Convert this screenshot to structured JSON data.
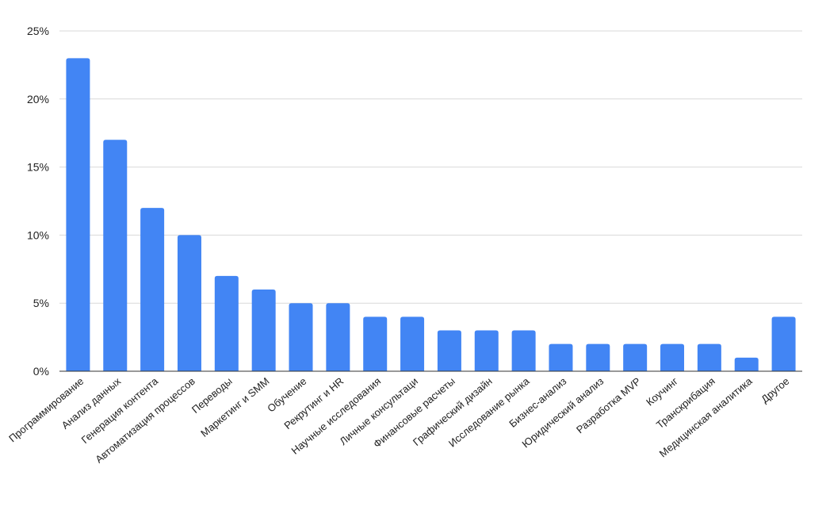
{
  "chart_data": {
    "type": "bar",
    "title": "",
    "xlabel": "",
    "ylabel": "",
    "ylim": [
      0,
      25
    ],
    "y_ticks": [
      "0%",
      "5%",
      "10%",
      "15%",
      "20%",
      "25%"
    ],
    "y_tick_values": [
      0,
      5,
      10,
      15,
      20,
      25
    ],
    "grid": true,
    "legend": "none",
    "bar_color": "#4285f4",
    "categories": [
      "Программирование",
      "Анализ данных",
      "Генерация контента",
      "Автоматизация процессов",
      "Переводы",
      "Маркетинг и SMM",
      "Обучение",
      "Рекрутинг и HR",
      "Научные исследования",
      "Личные консультаци",
      "Финансовые расчеты",
      "Графический дизайн",
      "Исследование рынка",
      "Бизнес-анализ",
      "Юридический анализ",
      "Разработка MVP",
      "Коучинг",
      "Транскрибация",
      "Медицинская аналитика",
      "Другое"
    ],
    "values": [
      23,
      17,
      12,
      10,
      7,
      6,
      5,
      5,
      4,
      4,
      3,
      3,
      3,
      2,
      2,
      2,
      2,
      2,
      1,
      4
    ],
    "unit": "%"
  }
}
